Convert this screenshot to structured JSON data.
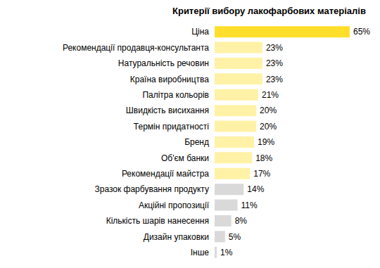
{
  "chart_data": {
    "type": "bar",
    "orientation": "horizontal",
    "title": "Критерії вибору лакофарбових матеріалів",
    "categories": [
      "Ціна",
      "Рекомендації продавця-консультанта",
      "Натуральність речовин",
      "Країна виробництва",
      "Палітра кольорів",
      "Швидкість висихання",
      "Термін придатності",
      "Бренд",
      "Об'єм банки",
      "Рекомендації майстра",
      "Зразок фарбування продукту",
      "Акційні пропозиції",
      "Кількість шарів нанесення",
      "Дизайн упаковки",
      "Інше"
    ],
    "values": [
      65,
      23,
      23,
      23,
      21,
      20,
      20,
      19,
      18,
      17,
      14,
      11,
      8,
      5,
      1
    ],
    "value_labels": [
      "65%",
      "23%",
      "23%",
      "23%",
      "21%",
      "20%",
      "20%",
      "19%",
      "18%",
      "17%",
      "14%",
      "11%",
      "8%",
      "5%",
      "1%"
    ],
    "colors": [
      "#ffdf2b",
      "#fff2a6",
      "#fff2a6",
      "#fff2a6",
      "#fff2a6",
      "#fff2a6",
      "#fff2a6",
      "#fff2a6",
      "#fff2a6",
      "#fff2a6",
      "#d9d9d9",
      "#d9d9d9",
      "#d9d9d9",
      "#d9d9d9",
      "#d9d9d9"
    ],
    "data_labels": true,
    "tick_labels": "y",
    "grid": false
  }
}
